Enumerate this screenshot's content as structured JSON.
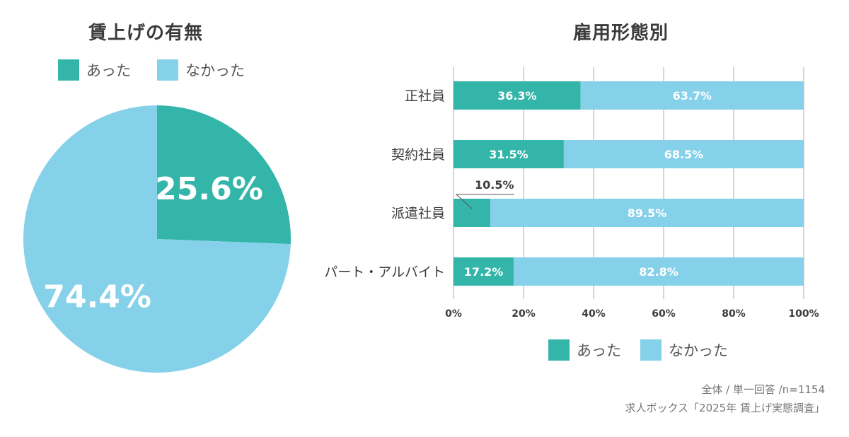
{
  "colors": {
    "yes": "#34b5aa",
    "no": "#86d1ea",
    "grid": "#c8c8c8",
    "text": "#3b3b3b"
  },
  "legend": {
    "yes_label": "あった",
    "no_label": "なかった"
  },
  "chart_data": [
    {
      "type": "pie",
      "title": "賃上げの有無",
      "slices": [
        {
          "label": "あった",
          "value": 25.6,
          "display": "25.6%"
        },
        {
          "label": "なかった",
          "value": 74.4,
          "display": "74.4%"
        }
      ]
    },
    {
      "type": "bar",
      "orientation": "horizontal",
      "stacked": true,
      "title": "雇用形態別",
      "categories": [
        "正社員",
        "契約社員",
        "派遣社員",
        "パート・アルバイト"
      ],
      "series": [
        {
          "name": "あった",
          "values": [
            36.3,
            31.5,
            10.5,
            17.2
          ]
        },
        {
          "name": "なかった",
          "values": [
            63.7,
            68.5,
            89.5,
            82.8
          ]
        }
      ],
      "xlim": [
        0,
        100
      ],
      "xticks": [
        "0%",
        "20%",
        "40%",
        "60%",
        "80%",
        "100%"
      ],
      "grid": true
    }
  ],
  "footnote": {
    "line1": "全体 / 単一回答 /n=1154",
    "line2": "求人ボックス「2025年 賃上げ実態調査」"
  }
}
